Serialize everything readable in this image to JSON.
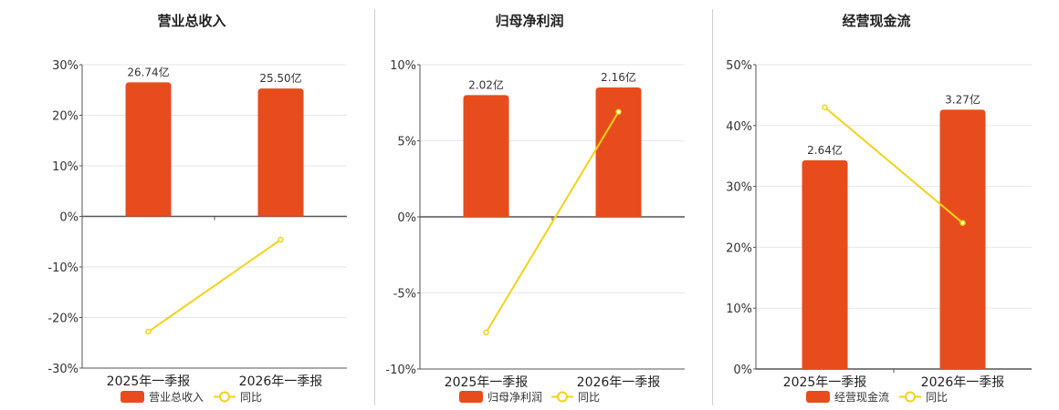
{
  "colors": {
    "bar": "#e84c1c",
    "line": "#f2d21b",
    "grid": "#e6e6ee",
    "axis": "#555555"
  },
  "legend": {
    "line_label": "同比"
  },
  "chart_data": [
    {
      "type": "bar",
      "title": "营业总收入",
      "categories": [
        "2025年一季报",
        "2026年一季报"
      ],
      "series": [
        {
          "name": "营业总收入",
          "kind": "bar",
          "values": [
            26.74,
            25.5
          ],
          "labels": [
            "26.74亿",
            "25.50亿"
          ],
          "ratio": [
            26.5,
            25.3
          ]
        },
        {
          "name": "同比",
          "kind": "line",
          "values": [
            -22.8,
            -4.6
          ]
        }
      ],
      "ylim": [
        -30,
        30
      ],
      "yticks": [
        "30%",
        "20%",
        "10%",
        "0%",
        "-10%",
        "-20%",
        "-30%"
      ],
      "ytick_values": [
        30,
        20,
        10,
        0,
        -10,
        -20,
        -30
      ]
    },
    {
      "type": "bar",
      "title": "归母净利润",
      "categories": [
        "2025年一季报",
        "2026年一季报"
      ],
      "series": [
        {
          "name": "归母净利润",
          "kind": "bar",
          "values": [
            2.02,
            2.16
          ],
          "labels": [
            "2.02亿",
            "2.16亿"
          ],
          "ratio": [
            8.0,
            8.5
          ]
        },
        {
          "name": "同比",
          "kind": "line",
          "values": [
            -7.6,
            6.9
          ]
        }
      ],
      "ylim": [
        -10,
        10
      ],
      "yticks": [
        "10%",
        "5%",
        "0%",
        "-5%",
        "-10%"
      ],
      "ytick_values": [
        10,
        5,
        0,
        -5,
        -10
      ]
    },
    {
      "type": "bar",
      "title": "经营现金流",
      "categories": [
        "2025年一季报",
        "2026年一季报"
      ],
      "series": [
        {
          "name": "经营现金流",
          "kind": "bar",
          "values": [
            2.64,
            3.27
          ],
          "labels": [
            "2.64亿",
            "3.27亿"
          ],
          "ratio": [
            34.3,
            42.6
          ]
        },
        {
          "name": "同比",
          "kind": "line",
          "values": [
            43.0,
            24.0
          ]
        }
      ],
      "ylim": [
        0,
        50
      ],
      "yticks": [
        "50%",
        "40%",
        "30%",
        "20%",
        "10%",
        "0%"
      ],
      "ytick_values": [
        50,
        40,
        30,
        20,
        10,
        0
      ]
    }
  ]
}
